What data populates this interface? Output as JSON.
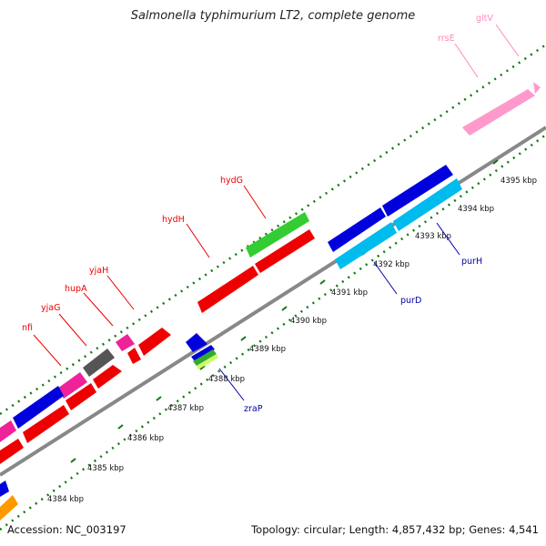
{
  "header": {
    "title": "Salmonella typhimurium LT2, complete genome"
  },
  "footer": {
    "accession": "Accession: NC_003197",
    "topology": "Topology: circular; Length: 4,857,432 bp; Genes: 4,541"
  },
  "ticks": [
    {
      "label": "4384 kbp"
    },
    {
      "label": "4385 kbp"
    },
    {
      "label": "4386 kbp"
    },
    {
      "label": "4387 kbp"
    },
    {
      "label": "4388 kbp"
    },
    {
      "label": "4389 kbp"
    },
    {
      "label": "4390 kbp"
    },
    {
      "label": "4391 kbp"
    },
    {
      "label": "4392 kbp"
    },
    {
      "label": "4393 kbp"
    },
    {
      "label": "4394 kbp"
    },
    {
      "label": "4395 kbp"
    }
  ],
  "gene_labels_top": [
    {
      "name": "nfi",
      "color": "#ee0000"
    },
    {
      "name": "yjaG",
      "color": "#ee0000"
    },
    {
      "name": "hupA",
      "color": "#ee0000"
    },
    {
      "name": "yjaH",
      "color": "#ee0000"
    },
    {
      "name": "hydH",
      "color": "#ee0000"
    },
    {
      "name": "hydG",
      "color": "#ee0000"
    },
    {
      "name": "rrsE",
      "color": "#ff88bb"
    },
    {
      "name": "gltV",
      "color": "#ff88bb"
    }
  ],
  "gene_labels_bottom": [
    {
      "name": "zraP",
      "color": "#0000aa"
    },
    {
      "name": "purD",
      "color": "#0000aa"
    },
    {
      "name": "purH",
      "color": "#0000aa"
    }
  ],
  "colors": {
    "cds_red": "#ee0000",
    "cds_blue": "#0000dd",
    "cds_lightblue": "#00bbee",
    "cds_green": "#33cc33",
    "rrna_pink": "#ff99cc",
    "magenta": "#ee2299",
    "gray": "#555555",
    "orange": "#ff9900",
    "tick_green": "#117711",
    "backbone": "#888888"
  }
}
